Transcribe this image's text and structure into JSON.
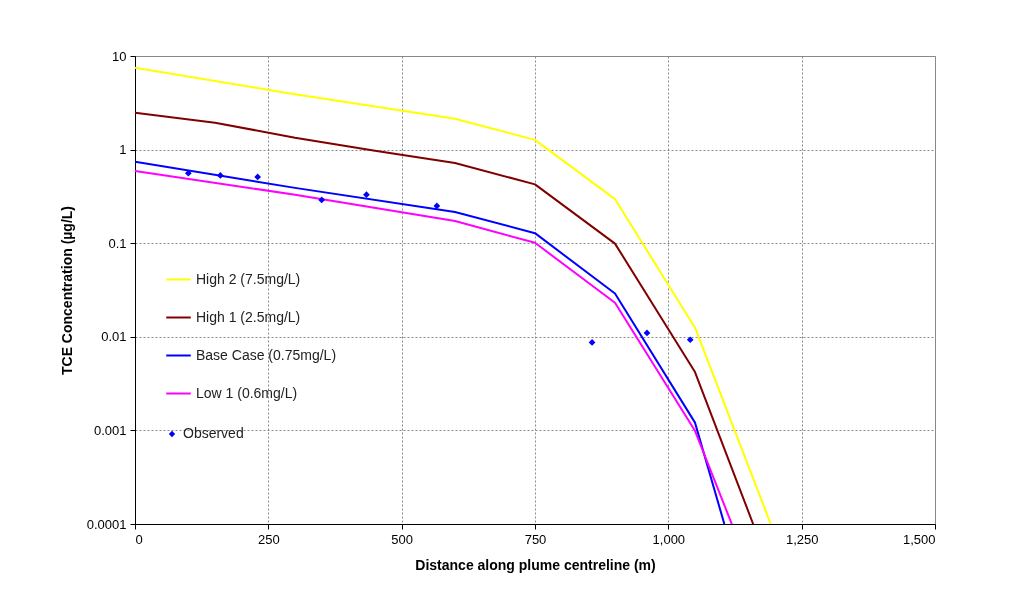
{
  "chart_data": {
    "type": "line",
    "xlabel": "Distance  along  plume centreline  (m)",
    "ylabel": "TCE Concentration  (µg/L)",
    "xlim": [
      0,
      1500
    ],
    "xticks": [
      0,
      250,
      500,
      750,
      {
        "value": 1000,
        "label": "1,000"
      },
      {
        "value": 1250,
        "label": "1,250"
      },
      {
        "value": 1500,
        "label": "1,500"
      }
    ],
    "ylim": [
      0.0001,
      10
    ],
    "yticks": [
      0.0001,
      0.001,
      0.01,
      0.1,
      1,
      10
    ],
    "log": "y",
    "grid": true,
    "legend": "left",
    "line_style": "solid",
    "series": [
      {
        "name": "High 2 (7.5mg/L)",
        "color": "#ffff00",
        "x": [
          0,
          300,
          600,
          750,
          900,
          1050,
          1192
        ],
        "values": [
          7.5,
          3.9,
          2.14,
          1.27,
          0.296,
          0.0125,
          0.0001
        ]
      },
      {
        "name": "High 1 (2.5mg/L)",
        "color": "#800000",
        "x": [
          0,
          150,
          300,
          450,
          600,
          750,
          900,
          1050,
          1159
        ],
        "values": [
          2.48,
          1.94,
          1.34,
          0.97,
          0.72,
          0.425,
          0.099,
          0.0042,
          0.0001
        ]
      },
      {
        "name": "Base Case (0.75mg/L)",
        "color": "#0000ff",
        "x": [
          0,
          300,
          600,
          750,
          900,
          1050,
          1105
        ],
        "values": [
          0.74,
          0.39,
          0.215,
          0.128,
          0.029,
          0.00121,
          0.0001
        ]
      },
      {
        "name": "Low 1 (0.6mg/L)",
        "color": "#ff00ff",
        "x": [
          0,
          300,
          600,
          750,
          900,
          1050,
          1119
        ],
        "values": [
          0.59,
          0.33,
          0.173,
          0.101,
          0.0231,
          0.00099,
          0.0001
        ]
      },
      {
        "name": "Observed",
        "color": "#0000ff",
        "type": "scatter",
        "marker": "diamond",
        "x": [
          100,
          160,
          230,
          350,
          434,
          566,
          857,
          960,
          1041
        ],
        "values": [
          0.56,
          0.53,
          0.51,
          0.29,
          0.33,
          0.25,
          0.0087,
          0.011,
          0.0093
        ]
      }
    ]
  }
}
